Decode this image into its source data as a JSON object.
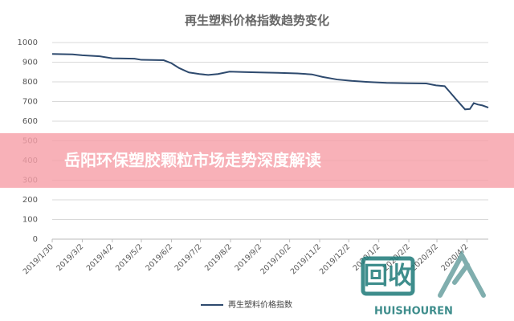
{
  "chart_data": {
    "type": "line",
    "title": "再生塑料价格指数趋势变化",
    "x": [
      "2019/1/30",
      "2019/2/20",
      "2019/3/2",
      "2019/3/20",
      "2019/4/2",
      "2019/4/25",
      "2019/5/2",
      "2019/5/25",
      "2019/6/2",
      "2019/6/10",
      "2019/6/20",
      "2019/7/1",
      "2019/7/10",
      "2019/7/20",
      "2019/8/1",
      "2019/8/15",
      "2019/9/1",
      "2019/9/20",
      "2019/10/10",
      "2019/10/25",
      "2019/11/5",
      "2019/11/20",
      "2019/12/5",
      "2019/12/20",
      "2020/1/10",
      "2020/2/1",
      "2020/2/20",
      "2020/3/1",
      "2020/3/10",
      "2020/3/15",
      "2020/3/22",
      "2020/3/31",
      "2020/4/5",
      "2020/4/9",
      "2020/4/13",
      "2020/4/18",
      "2020/4/24"
    ],
    "series": [
      {
        "name": "再生塑料价格指数",
        "color": "#2e4a6e",
        "values": [
          942,
          940,
          935,
          930,
          920,
          918,
          912,
          910,
          895,
          870,
          848,
          840,
          835,
          840,
          852,
          850,
          848,
          846,
          843,
          838,
          825,
          812,
          805,
          800,
          795,
          793,
          792,
          782,
          778,
          750,
          710,
          660,
          662,
          692,
          685,
          680,
          669
        ]
      }
    ],
    "xlim": [
      "2019/1/30",
      "2020/4/24"
    ],
    "xticks": [
      "2019/1/30",
      "2019/3/2",
      "2019/4/2",
      "2019/5/2",
      "2019/6/2",
      "2019/7/2",
      "2019/8/2",
      "2019/9/2",
      "2019/10/2",
      "2019/11/2",
      "2019/12/2",
      "2020/1/2",
      "2020/2/2",
      "2020/3/2",
      "2020/4/2"
    ],
    "ylim": [
      0,
      1000
    ],
    "yticks": [
      0,
      100,
      200,
      300,
      400,
      500,
      600,
      700,
      800,
      900,
      1000
    ],
    "grid": true,
    "legend": "bottom"
  },
  "overlay": {
    "banner": "岳阳环保塑胶颗粒市场走势深度解读"
  },
  "watermark": {
    "text": "回收",
    "subtext": "HUISHOUREN"
  }
}
